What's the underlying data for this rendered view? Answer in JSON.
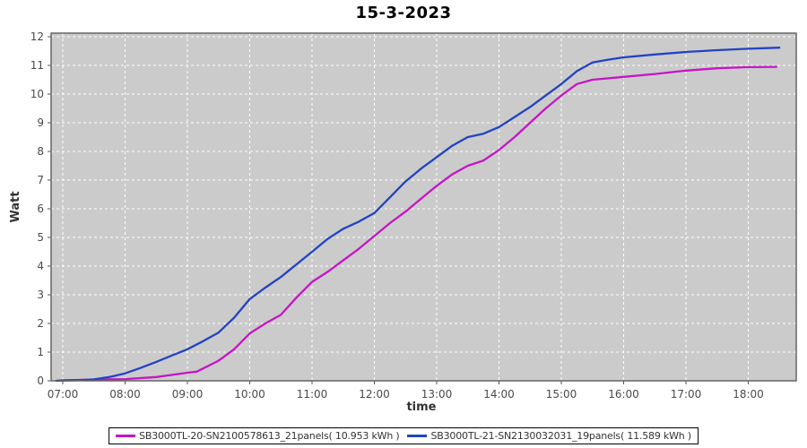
{
  "window": {
    "title": "15-3-2023"
  },
  "colors": {
    "plot_background": "#CBCBCB",
    "plot_border": "#656565",
    "gridline": "#FFFFFF",
    "tick": "#555555",
    "tick_label": "#4A4A4A",
    "axis_label": "#333333",
    "series_magenta": "#C615C6",
    "series_blue": "#2243C4",
    "legend_border": "#000000"
  },
  "chart_data": {
    "type": "line",
    "title": "15-3-2023",
    "xlabel": "time",
    "ylabel": "Watt",
    "xlim": [
      6.813,
      18.77
    ],
    "ylim": [
      0,
      12.125
    ],
    "grid": "white dashed gridlines on gray plot background",
    "legend_position": "bottom-center",
    "x_ticks": [
      {
        "v": 7,
        "label": "07:00"
      },
      {
        "v": 8,
        "label": "08:00"
      },
      {
        "v": 9,
        "label": "09:00"
      },
      {
        "v": 10,
        "label": "10:00"
      },
      {
        "v": 11,
        "label": "11:00"
      },
      {
        "v": 12,
        "label": "12:00"
      },
      {
        "v": 13,
        "label": "13:00"
      },
      {
        "v": 14,
        "label": "14:00"
      },
      {
        "v": 15,
        "label": "15:00"
      },
      {
        "v": 16,
        "label": "16:00"
      },
      {
        "v": 17,
        "label": "17:00"
      },
      {
        "v": 18,
        "label": "18:00"
      }
    ],
    "y_ticks": [
      0,
      1,
      2,
      3,
      4,
      5,
      6,
      7,
      8,
      9,
      10,
      11,
      12
    ],
    "series": [
      {
        "name": "SB3000TL-20-SN2100578613_21panels",
        "label": "SB3000TL-20-SN2100578613_21panels( 10.953 kWh )",
        "total_kwh": "10.953",
        "color": "#C615C6",
        "points": [
          [
            6.9,
            0.0
          ],
          [
            7.0,
            0.02
          ],
          [
            7.5,
            0.04
          ],
          [
            8.0,
            0.06
          ],
          [
            8.5,
            0.13
          ],
          [
            9.0,
            0.28
          ],
          [
            9.15,
            0.32
          ],
          [
            9.5,
            0.7
          ],
          [
            9.75,
            1.1
          ],
          [
            10.0,
            1.65
          ],
          [
            10.25,
            2.0
          ],
          [
            10.5,
            2.3
          ],
          [
            10.75,
            2.9
          ],
          [
            11.0,
            3.45
          ],
          [
            11.25,
            3.8
          ],
          [
            11.5,
            4.2
          ],
          [
            11.75,
            4.6
          ],
          [
            12.0,
            5.05
          ],
          [
            12.25,
            5.5
          ],
          [
            12.5,
            5.9
          ],
          [
            12.75,
            6.35
          ],
          [
            13.0,
            6.8
          ],
          [
            13.25,
            7.2
          ],
          [
            13.5,
            7.5
          ],
          [
            13.75,
            7.68
          ],
          [
            14.0,
            8.05
          ],
          [
            14.25,
            8.5
          ],
          [
            14.5,
            9.0
          ],
          [
            14.75,
            9.5
          ],
          [
            15.0,
            9.95
          ],
          [
            15.25,
            10.35
          ],
          [
            15.5,
            10.5
          ],
          [
            16.0,
            10.6
          ],
          [
            16.5,
            10.7
          ],
          [
            17.0,
            10.82
          ],
          [
            17.5,
            10.9
          ],
          [
            18.0,
            10.94
          ],
          [
            18.45,
            10.95
          ]
        ]
      },
      {
        "name": "SB3000TL-21-SN2130032031_19panels",
        "label": "SB3000TL-21-SN2130032031_19panels( 11.589 kWh )",
        "total_kwh": "11.589",
        "color": "#2243C4",
        "points": [
          [
            6.9,
            0.0
          ],
          [
            7.0,
            0.01
          ],
          [
            7.25,
            0.02
          ],
          [
            7.5,
            0.05
          ],
          [
            7.75,
            0.13
          ],
          [
            8.0,
            0.26
          ],
          [
            8.25,
            0.45
          ],
          [
            8.5,
            0.66
          ],
          [
            8.75,
            0.88
          ],
          [
            9.0,
            1.1
          ],
          [
            9.25,
            1.38
          ],
          [
            9.5,
            1.68
          ],
          [
            9.75,
            2.2
          ],
          [
            10.0,
            2.85
          ],
          [
            10.25,
            3.25
          ],
          [
            10.5,
            3.62
          ],
          [
            10.75,
            4.06
          ],
          [
            11.0,
            4.5
          ],
          [
            11.25,
            4.95
          ],
          [
            11.5,
            5.3
          ],
          [
            11.75,
            5.55
          ],
          [
            12.0,
            5.85
          ],
          [
            12.25,
            6.4
          ],
          [
            12.5,
            6.95
          ],
          [
            12.75,
            7.4
          ],
          [
            13.0,
            7.8
          ],
          [
            13.25,
            8.2
          ],
          [
            13.5,
            8.5
          ],
          [
            13.75,
            8.62
          ],
          [
            14.0,
            8.85
          ],
          [
            14.25,
            9.2
          ],
          [
            14.5,
            9.55
          ],
          [
            14.75,
            9.95
          ],
          [
            15.0,
            10.35
          ],
          [
            15.25,
            10.8
          ],
          [
            15.5,
            11.1
          ],
          [
            15.75,
            11.2
          ],
          [
            16.0,
            11.28
          ],
          [
            16.5,
            11.38
          ],
          [
            17.0,
            11.47
          ],
          [
            17.5,
            11.53
          ],
          [
            18.0,
            11.58
          ],
          [
            18.5,
            11.62
          ]
        ]
      }
    ]
  }
}
